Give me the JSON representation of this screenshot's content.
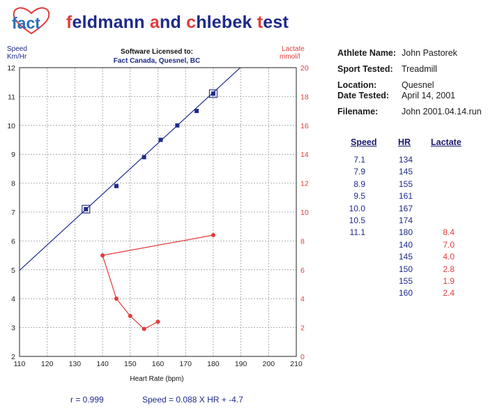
{
  "logo": {
    "text": "fact"
  },
  "brand": {
    "w1a": "f",
    "w1b": "eldmann ",
    "w2a": "a",
    "w2b": "nd ",
    "w3a": "c",
    "w3b": "hlebek ",
    "w4a": "t",
    "w4b": "est"
  },
  "colors": {
    "blue": "#1d2a8a",
    "red": "#e23b3b",
    "grid": "#9a9a9a"
  },
  "license": {
    "line1": "Software Licensed to:",
    "line2": "Fact Canada, Quesnel, BC"
  },
  "athlete": {
    "name_label": "Athlete Name:",
    "name": "John Pastorek",
    "sport_label": "Sport Tested:",
    "sport": "Treadmill",
    "location_label": "Location:",
    "location": "Quesnel",
    "date_label": "Date Tested:",
    "date": "April 14, 2001",
    "file_label": "Filename:",
    "file": "John 2001.04.14.run"
  },
  "table": {
    "headers": [
      "Speed",
      "HR",
      "Lactate"
    ],
    "speed": [
      "7.1",
      "7.9",
      "8.9",
      "9.5",
      "10.0",
      "10.5",
      "11.1"
    ],
    "hr": [
      "134",
      "145",
      "155",
      "161",
      "167",
      "174",
      "180",
      "140",
      "145",
      "150",
      "155",
      "160"
    ],
    "lactate": [
      "8.4",
      "7.0",
      "4.0",
      "2.8",
      "1.9",
      "2.4"
    ]
  },
  "footer": {
    "r": "r = 0.999",
    "equation": "Speed = 0.088 X HR + -4.7"
  },
  "chart_data": {
    "type": "scatter",
    "xlabel": "Heart Rate (bpm)",
    "ylabel_left": "Speed",
    "ylabel_left_unit": "Km/Hr",
    "ylabel_right": "Lactate",
    "ylabel_right_unit": "mmol/l",
    "xlim": [
      110,
      210
    ],
    "ylim_left": [
      2,
      12
    ],
    "ylim_right": [
      0,
      20
    ],
    "x_ticks": [
      110,
      120,
      130,
      140,
      150,
      160,
      170,
      180,
      190,
      200,
      210
    ],
    "y_left_ticks": [
      2,
      3,
      4,
      5,
      6,
      7,
      8,
      9,
      10,
      11,
      12
    ],
    "y_right_ticks": [
      0,
      2,
      4,
      6,
      8,
      10,
      12,
      14,
      16,
      18,
      20
    ],
    "grid": true,
    "series": [
      {
        "name": "Speed",
        "axis": "left",
        "color": "#1d2a8a",
        "x": [
          134,
          145,
          155,
          161,
          167,
          174,
          180
        ],
        "y": [
          7.1,
          7.9,
          8.9,
          9.5,
          10.0,
          10.5,
          11.1
        ],
        "highlighted": [
          134,
          180
        ]
      },
      {
        "name": "Lactate",
        "axis": "right",
        "color": "#e23b3b",
        "x": [
          180,
          140,
          145,
          150,
          155,
          160
        ],
        "y": [
          8.4,
          7.0,
          4.0,
          2.8,
          1.9,
          2.4
        ]
      }
    ],
    "regression": {
      "slope": 0.088,
      "intercept": -4.7
    }
  }
}
